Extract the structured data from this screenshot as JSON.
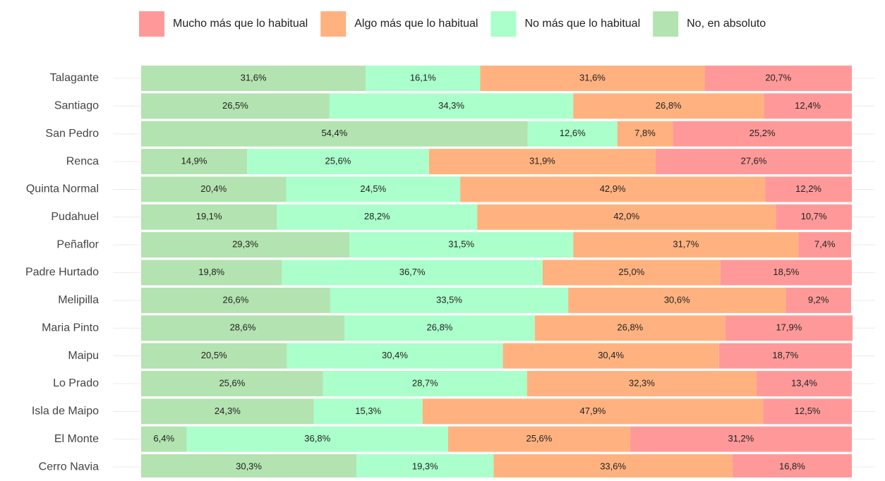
{
  "chart_data": {
    "type": "stacked-bar-horizontal",
    "categories": [
      "Talagante",
      "Santiago",
      "San Pedro",
      "Renca",
      "Quinta Normal",
      "Pudahuel",
      "Peñaflor",
      "Padre Hurtado",
      "Melipilla",
      "Maria Pinto",
      "Maipu",
      "Lo Prado",
      "Isla de Maipo",
      "El Monte",
      "Cerro Navia"
    ],
    "xlim": [
      0,
      100
    ],
    "series": [
      {
        "name": "No, en absoluto",
        "color": "#b3e3b0",
        "values": [
          31.6,
          26.5,
          54.4,
          14.9,
          20.4,
          19.1,
          29.3,
          19.8,
          26.6,
          28.6,
          20.5,
          25.6,
          24.3,
          6.4,
          30.3
        ],
        "value_labels": [
          "31,6%",
          "26,5%",
          "54,4%",
          "14,9%",
          "20,4%",
          "19,1%",
          "29,3%",
          "19,8%",
          "26,6%",
          "28,6%",
          "20,5%",
          "25,6%",
          "24,3%",
          "6,4%",
          "30,3%"
        ]
      },
      {
        "name": "No más que lo habitual",
        "color": "#aaffca",
        "values": [
          16.1,
          34.3,
          12.6,
          25.6,
          24.5,
          28.2,
          31.5,
          36.7,
          33.5,
          26.8,
          30.4,
          28.7,
          15.3,
          36.8,
          19.3
        ],
        "value_labels": [
          "16,1%",
          "34,3%",
          "12,6%",
          "25,6%",
          "24,5%",
          "28,2%",
          "31,5%",
          "36,7%",
          "33,5%",
          "26,8%",
          "30,4%",
          "28,7%",
          "15,3%",
          "36,8%",
          "19,3%"
        ]
      },
      {
        "name": "Algo más que lo habitual",
        "color": "#ffb27f",
        "values": [
          31.6,
          26.8,
          7.8,
          31.9,
          42.9,
          42.0,
          31.7,
          25.0,
          30.6,
          26.8,
          30.4,
          32.3,
          47.9,
          25.6,
          33.6
        ],
        "value_labels": [
          "31,6%",
          "26,8%",
          "7,8%",
          "31,9%",
          "42,9%",
          "42,0%",
          "31,7%",
          "25,0%",
          "30,6%",
          "26,8%",
          "30,4%",
          "32,3%",
          "47,9%",
          "25,6%",
          "33,6%"
        ]
      },
      {
        "name": "Mucho más que lo habitual",
        "color": "#ff9999",
        "values": [
          20.7,
          12.4,
          25.2,
          27.6,
          12.2,
          10.7,
          7.4,
          18.5,
          9.2,
          17.9,
          18.7,
          13.4,
          12.5,
          31.2,
          16.8
        ],
        "value_labels": [
          "20,7%",
          "12,4%",
          "25,2%",
          "27,6%",
          "12,2%",
          "10,7%",
          "7,4%",
          "18,5%",
          "9,2%",
          "17,9%",
          "18,7%",
          "13,4%",
          "12,5%",
          "31,2%",
          "16,8%"
        ]
      }
    ]
  }
}
